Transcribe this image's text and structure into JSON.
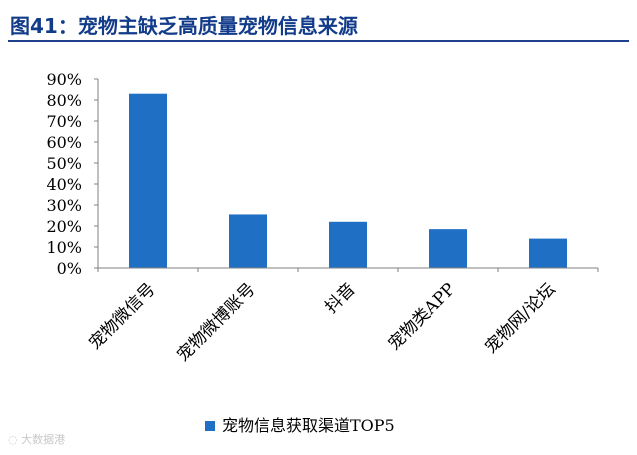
{
  "header": {
    "title": "图41：宠物主缺乏高质量宠物信息来源"
  },
  "chart_data": {
    "type": "bar",
    "title": "图41：宠物主缺乏高质量宠物信息来源",
    "categories": [
      "宠物微信号",
      "宠物微博账号",
      "抖音",
      "宠物类APP",
      "宠物网/论坛"
    ],
    "series": [
      {
        "name": "宠物信息获取渠道TOP5",
        "values": [
          83,
          25.5,
          22,
          18.5,
          14
        ],
        "color": "#1f6fc5"
      }
    ],
    "ylim": [
      0,
      90
    ],
    "yticks": [
      "0%",
      "10%",
      "20%",
      "30%",
      "40%",
      "50%",
      "60%",
      "70%",
      "80%",
      "90%"
    ],
    "xlabel": "",
    "ylabel": "",
    "grid": false,
    "legend_position": "bottom"
  },
  "watermark": "大数据港"
}
